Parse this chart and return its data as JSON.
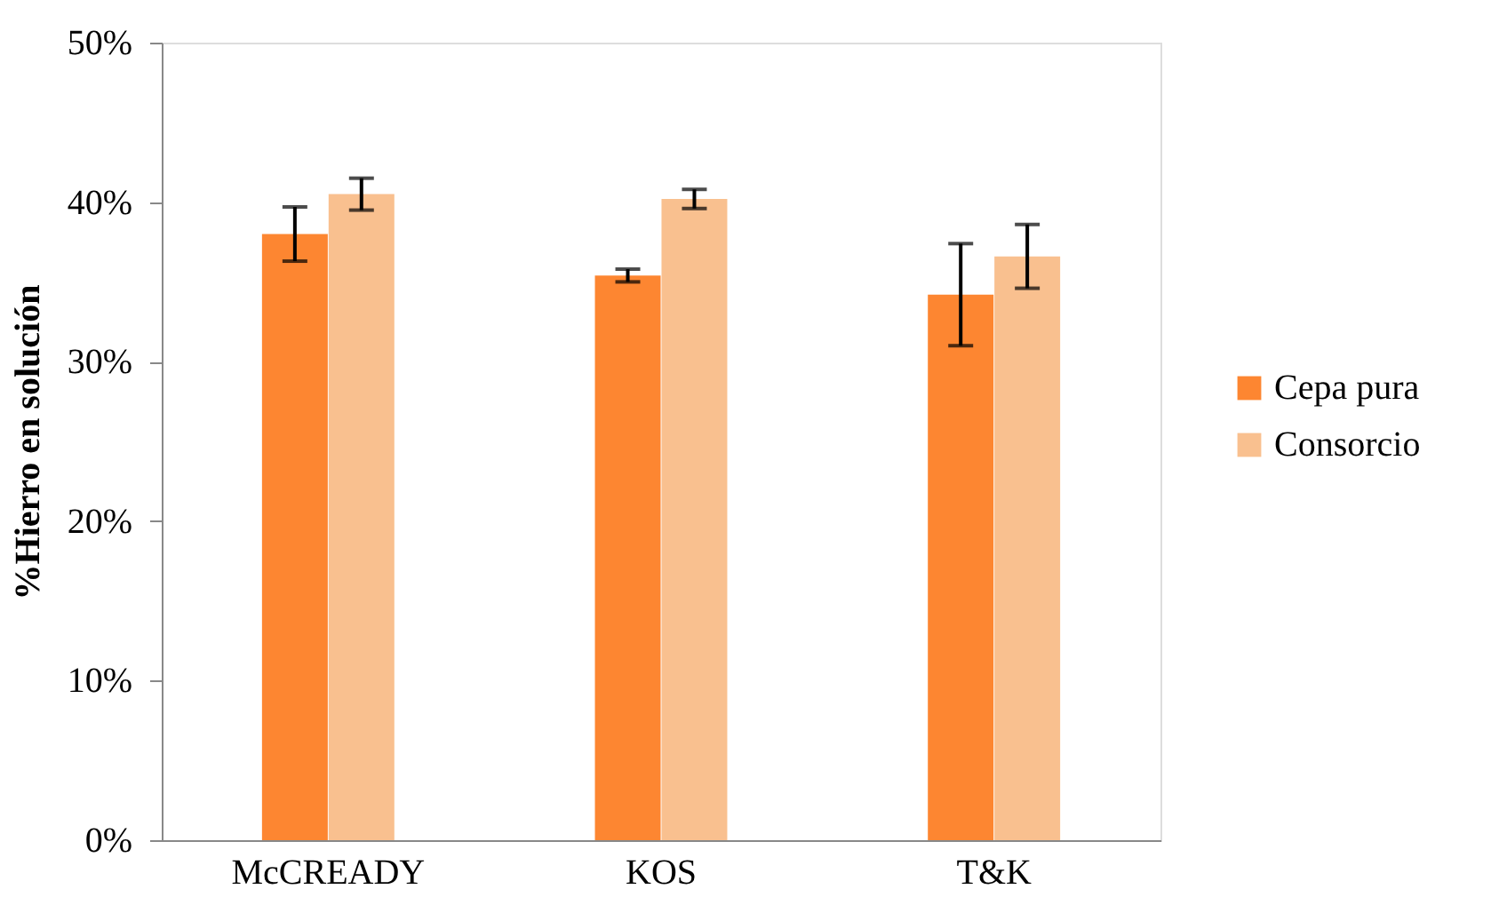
{
  "chart_data": {
    "type": "bar",
    "ylabel": "%Hierro en solución",
    "categories": [
      "McCREADY",
      "KOS",
      "T&K"
    ],
    "series": [
      {
        "name": "Cepa pura",
        "color": "#fd8631",
        "values": [
          38.0,
          35.4,
          34.2
        ],
        "errors": [
          1.7,
          0.4,
          3.2
        ]
      },
      {
        "name": "Consorcio",
        "color": "#f9c08f",
        "values": [
          40.5,
          40.2,
          36.6
        ],
        "errors": [
          1.0,
          0.6,
          2.0
        ]
      }
    ],
    "ylim": [
      0,
      50
    ],
    "yticks": [
      {
        "value": 0,
        "label": "0%"
      },
      {
        "value": 10,
        "label": "10%"
      },
      {
        "value": 20,
        "label": "20%"
      },
      {
        "value": 30,
        "label": "30%"
      },
      {
        "value": 40,
        "label": "40%"
      },
      {
        "value": 50,
        "label": "50%"
      }
    ],
    "grid": false,
    "legend": "right"
  }
}
